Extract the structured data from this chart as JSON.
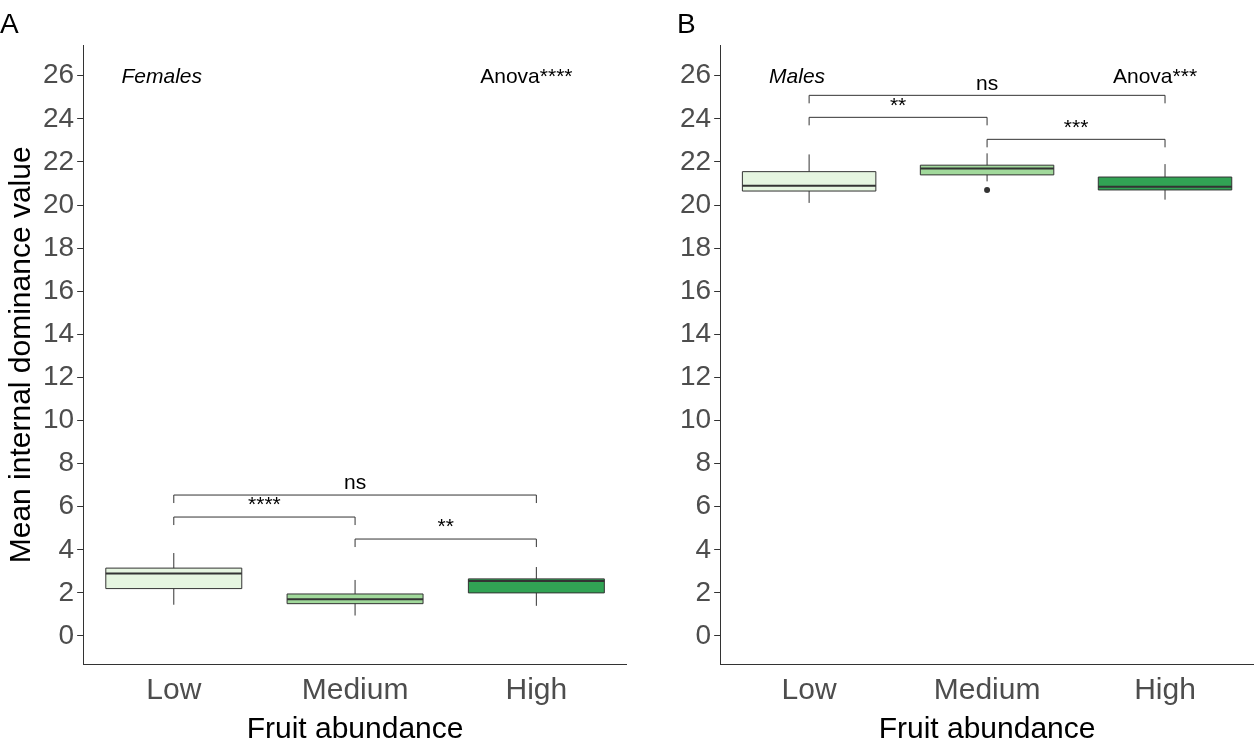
{
  "chart_data": [
    {
      "type": "box",
      "title": "A",
      "xlabel": "Fruit abundance",
      "ylabel": "Mean internal dominance value",
      "categories": [
        "Low",
        "Medium",
        "High"
      ],
      "colors": [
        "#e5f5e0",
        "#a1d99b",
        "#31a354"
      ],
      "boxes": [
        {
          "low": 1.45,
          "q1": 2.2,
          "median": 2.9,
          "q3": 3.15,
          "high": 3.85
        },
        {
          "low": 0.95,
          "q1": 1.5,
          "median": 1.7,
          "q3": 1.95,
          "high": 2.6
        },
        {
          "low": 1.4,
          "q1": 2.0,
          "median": 2.55,
          "q3": 2.65,
          "high": 3.2
        }
      ],
      "ylim": [
        -1.3,
        27.4
      ],
      "yticks": [
        0,
        2,
        4,
        6,
        8,
        10,
        12,
        14,
        16,
        18,
        20,
        22,
        24,
        26
      ],
      "grid": false,
      "annotations": [
        "Females",
        "Anova****",
        "ns",
        "****",
        "**"
      ]
    },
    {
      "type": "box",
      "title": "B",
      "xlabel": "Fruit abundance",
      "categories": [
        "Low",
        "Medium",
        "High"
      ],
      "colors": [
        "#e5f5e0",
        "#a1d99b",
        "#31a354"
      ],
      "boxes": [
        {
          "low": 20.1,
          "q1": 20.65,
          "median": 20.9,
          "q3": 21.55,
          "high": 22.35
        },
        {
          "low": 21.1,
          "q1": 21.4,
          "median": 21.7,
          "q3": 21.85,
          "high": 22.4,
          "outliers": [
            20.7
          ]
        },
        {
          "low": 20.25,
          "q1": 20.7,
          "median": 20.85,
          "q3": 21.3,
          "high": 21.9
        }
      ],
      "ylim": [
        -1.3,
        27.4
      ],
      "yticks": [
        0,
        2,
        4,
        6,
        8,
        10,
        12,
        14,
        16,
        18,
        20,
        22,
        24,
        26
      ],
      "grid": false,
      "annotations": [
        "Males",
        "Anova***",
        "ns",
        "**",
        "***"
      ]
    }
  ]
}
